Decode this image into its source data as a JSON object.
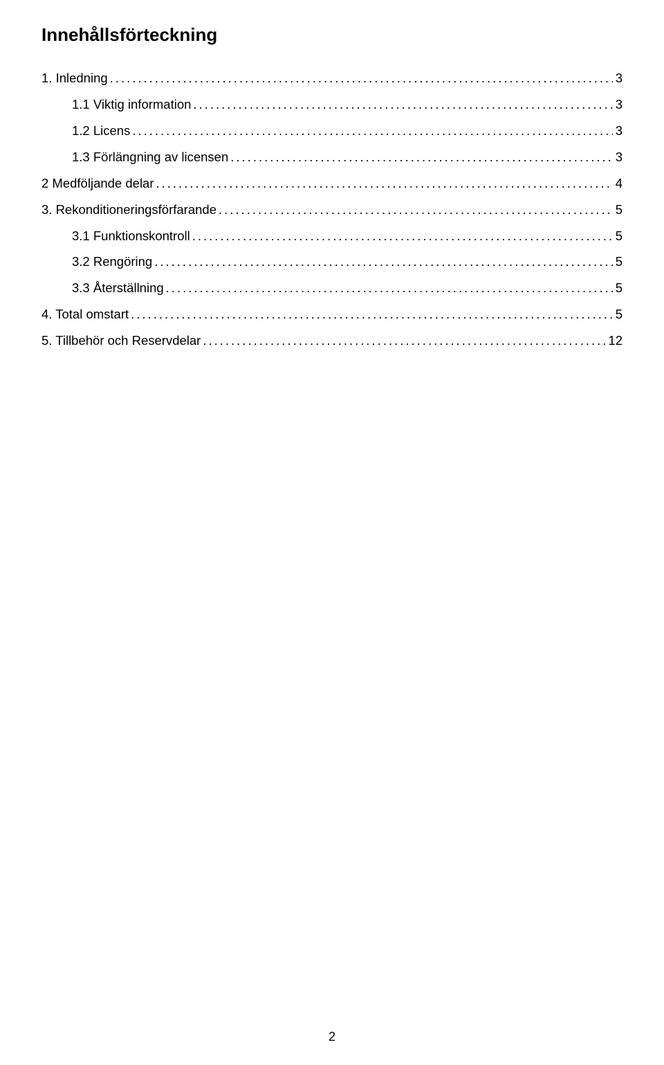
{
  "title": "Innehållsförteckning",
  "entries": [
    {
      "label": "1. Inledning",
      "page": "3",
      "level": 0
    },
    {
      "label": "1.1 Viktig information",
      "page": "3",
      "level": 1
    },
    {
      "label": "1.2 Licens",
      "page": "3",
      "level": 1
    },
    {
      "label": "1.3 Förlängning av licensen",
      "page": "3",
      "level": 1
    },
    {
      "label": "2 Medföljande delar",
      "page": "4",
      "level": 0
    },
    {
      "label": "3. Rekonditioneringsförfarande",
      "page": "5",
      "level": 0
    },
    {
      "label": "3.1 Funktionskontroll",
      "page": "5",
      "level": 1
    },
    {
      "label": "3.2 Rengöring",
      "page": "5",
      "level": 1
    },
    {
      "label": "3.3 Återställning",
      "page": "5",
      "level": 1
    },
    {
      "label": "4. Total omstart",
      "page": "5",
      "level": 0
    },
    {
      "label": "5. Tillbehör och Reservdelar",
      "page": "12",
      "level": 0
    }
  ],
  "pageNumber": "2",
  "dotFill": "................................................................................................................................................................................................................................"
}
